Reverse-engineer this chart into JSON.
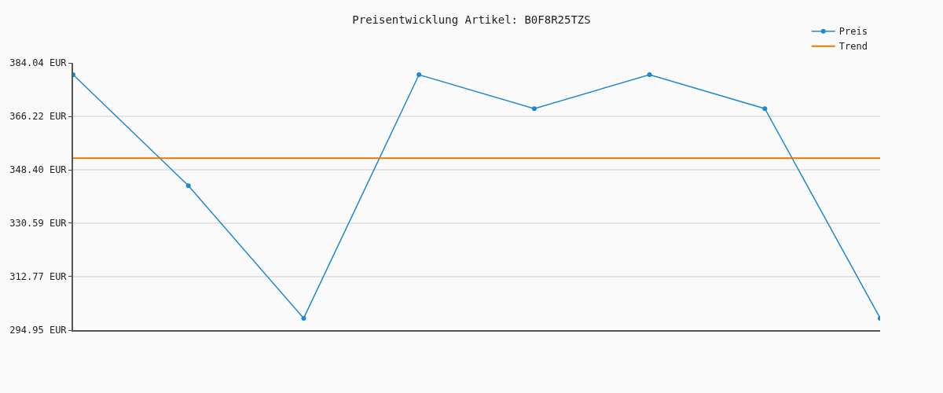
{
  "chart_data": {
    "type": "line",
    "title": "Preisentwicklung Artikel: B0F8R25TZS",
    "categories": [
      null,
      null,
      null,
      null,
      null,
      null,
      null,
      null
    ],
    "series": [
      {
        "name": "Preis",
        "color": "#1f88d0",
        "marker": "circle",
        "values": [
          380.1,
          343.1,
          298.9,
          380.1,
          368.8,
          380.1,
          368.8,
          298.9
        ]
      },
      {
        "name": "Trend",
        "color": "#e07b00",
        "marker": "none",
        "values": [
          352.3,
          352.3,
          352.3,
          352.3,
          352.3,
          352.3,
          352.3,
          352.3
        ]
      }
    ],
    "ylim": [
      294.95,
      384.04
    ],
    "yticks": [
      {
        "value": 294.95,
        "label": "294.95 EUR"
      },
      {
        "value": 312.77,
        "label": "312.77 EUR"
      },
      {
        "value": 330.59,
        "label": "330.59 EUR"
      },
      {
        "value": 348.4,
        "label": "348.40 EUR"
      },
      {
        "value": 366.22,
        "label": "366.22 EUR"
      },
      {
        "value": 384.04,
        "label": "384.04 EUR"
      }
    ],
    "grid": "y",
    "legend": "top right",
    "tick_labels": "y"
  }
}
